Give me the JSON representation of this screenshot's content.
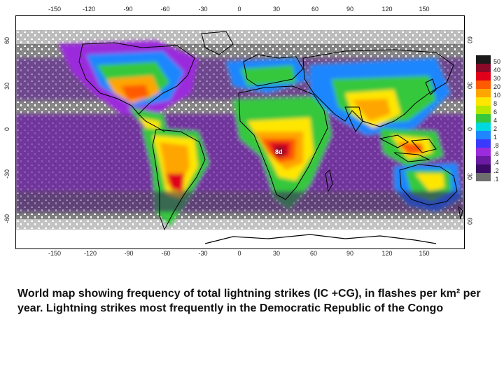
{
  "map": {
    "top_lon_ticks": [
      "-150",
      "-120",
      "-90",
      "-60",
      "-30",
      "0",
      "30",
      "60",
      "90",
      "120",
      "150"
    ],
    "bottom_lon_ticks": [
      "-150",
      "-120",
      "-90",
      "-60",
      "-30",
      "0",
      "30",
      "60",
      "90",
      "120",
      "150"
    ],
    "left_lat_ticks": [
      "60",
      "30",
      "0",
      "-30",
      "-60"
    ],
    "right_lat_ticks": [
      "60",
      "30",
      "0",
      "30",
      "60"
    ],
    "hotspot_marker": "8d"
  },
  "legend": {
    "entries": [
      {
        "label": "50",
        "color": "#1a1a1a"
      },
      {
        "label": "40",
        "color": "#8b0a2a"
      },
      {
        "label": "30",
        "color": "#e0001a"
      },
      {
        "label": "20",
        "color": "#ff5a00"
      },
      {
        "label": "10",
        "color": "#ffa500"
      },
      {
        "label": "8",
        "color": "#ffe600"
      },
      {
        "label": "6",
        "color": "#b8e800"
      },
      {
        "label": "4",
        "color": "#36c83c"
      },
      {
        "label": "2",
        "color": "#00d8e0"
      },
      {
        "label": "1",
        "color": "#1f86ff"
      },
      {
        "label": ".8",
        "color": "#3a3aff"
      },
      {
        "label": ".6",
        "color": "#9b2bdc"
      },
      {
        "label": ".4",
        "color": "#6a1ba2"
      },
      {
        "label": ".2",
        "color": "#3a0a66"
      },
      {
        "label": ".1",
        "color": "#6e6e6e"
      }
    ]
  },
  "caption": "World map showing frequency of total lightning strikes (IC +CG), in flashes per km² per year. Lightning strikes most frequently in the Democratic Republic of the Congo"
}
